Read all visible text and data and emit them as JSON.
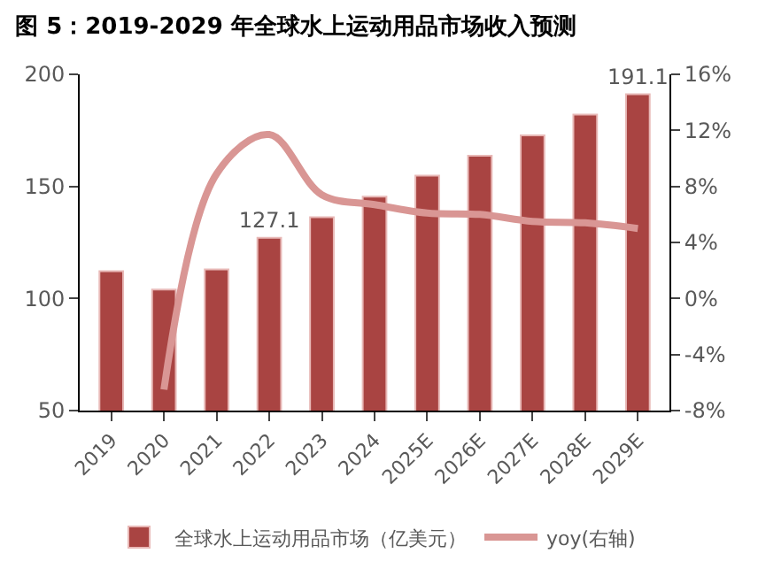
{
  "chart_data": {
    "type": "bar",
    "title": "图 5：2019-2029 年全球水上运动用品市场收入预测",
    "categories": [
      "2019",
      "2020",
      "2021",
      "2022",
      "2023",
      "2024",
      "2025E",
      "2026E",
      "2027E",
      "2028E",
      "2029E"
    ],
    "series": [
      {
        "name": "全球水上运动用品市场（亿美元）",
        "color": "#a94442",
        "values": [
          112.2,
          104,
          113,
          127.1,
          136.2,
          145.4,
          154.8,
          163.7,
          172.8,
          182,
          191.1
        ],
        "value_labels": [
          null,
          null,
          null,
          "127.1",
          null,
          null,
          null,
          null,
          null,
          null,
          "191.1"
        ]
      },
      {
        "name": "yoy(右轴)",
        "type": "line",
        "axis": "y2",
        "color": "#d99694",
        "values": [
          null,
          -6.5,
          8.9,
          11.7,
          7.4,
          6.7,
          6.1,
          6.0,
          5.5,
          5.4,
          5.0
        ]
      }
    ],
    "ylim": [
      50,
      200
    ],
    "yticks": [
      50,
      100,
      150,
      200
    ],
    "y2lim": [
      -8,
      16
    ],
    "y2ticks": [
      {
        "value": -8,
        "label": "-8%"
      },
      {
        "value": -4,
        "label": "-4%"
      },
      {
        "value": 0,
        "label": "0%"
      },
      {
        "value": 4,
        "label": "4%"
      },
      {
        "value": 8,
        "label": "8%"
      },
      {
        "value": 12,
        "label": "12%"
      },
      {
        "value": 16,
        "label": "16%"
      }
    ],
    "legend": "bottom"
  }
}
